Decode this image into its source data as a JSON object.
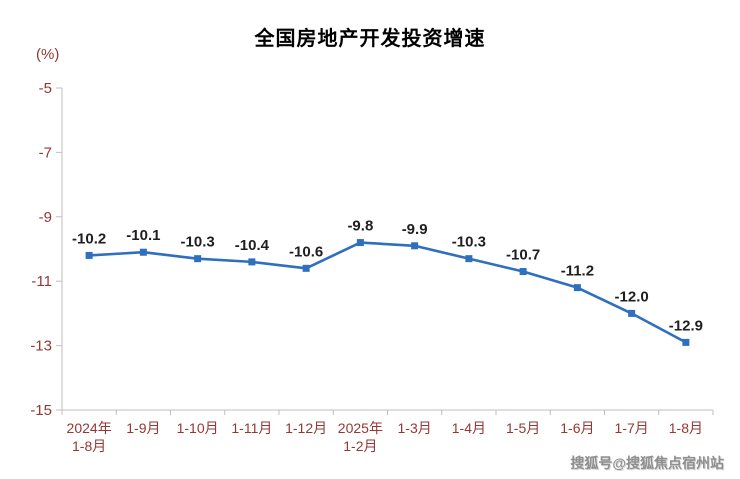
{
  "title": "全国房地产开发投资增速",
  "y_axis_unit": "(%)",
  "watermark": "搜狐号@搜狐焦点宿州站",
  "chart_data": {
    "type": "line",
    "title": "全国房地产开发投资增速",
    "ylabel": "(%)",
    "categories": [
      "2024年\n1-8月",
      "1-9月",
      "1-10月",
      "1-11月",
      "1-12月",
      "2025年\n1-2月",
      "1-3月",
      "1-4月",
      "1-5月",
      "1-6月",
      "1-7月",
      "1-8月"
    ],
    "values": [
      -10.2,
      -10.1,
      -10.3,
      -10.4,
      -10.6,
      -9.8,
      -9.9,
      -10.3,
      -10.7,
      -11.2,
      -12.0,
      -12.9
    ],
    "data_labels": [
      "-10.2",
      "-10.1",
      "-10.3",
      "-10.4",
      "-10.6",
      "-9.8",
      "-9.9",
      "-10.3",
      "-10.7",
      "-11.2",
      "-12.0",
      "-12.9"
    ],
    "ylim": [
      -15,
      -5
    ],
    "yticks": [
      -5,
      -7,
      -9,
      -11,
      -13,
      -15
    ],
    "grid": "off",
    "legend": "none",
    "line_color": "#2E6FBE",
    "marker": "square",
    "axis_line_color": "#BFBFBF",
    "axis_text_color": "#953735",
    "data_label_color": "#1f1f1f",
    "title_color": "#000000"
  }
}
